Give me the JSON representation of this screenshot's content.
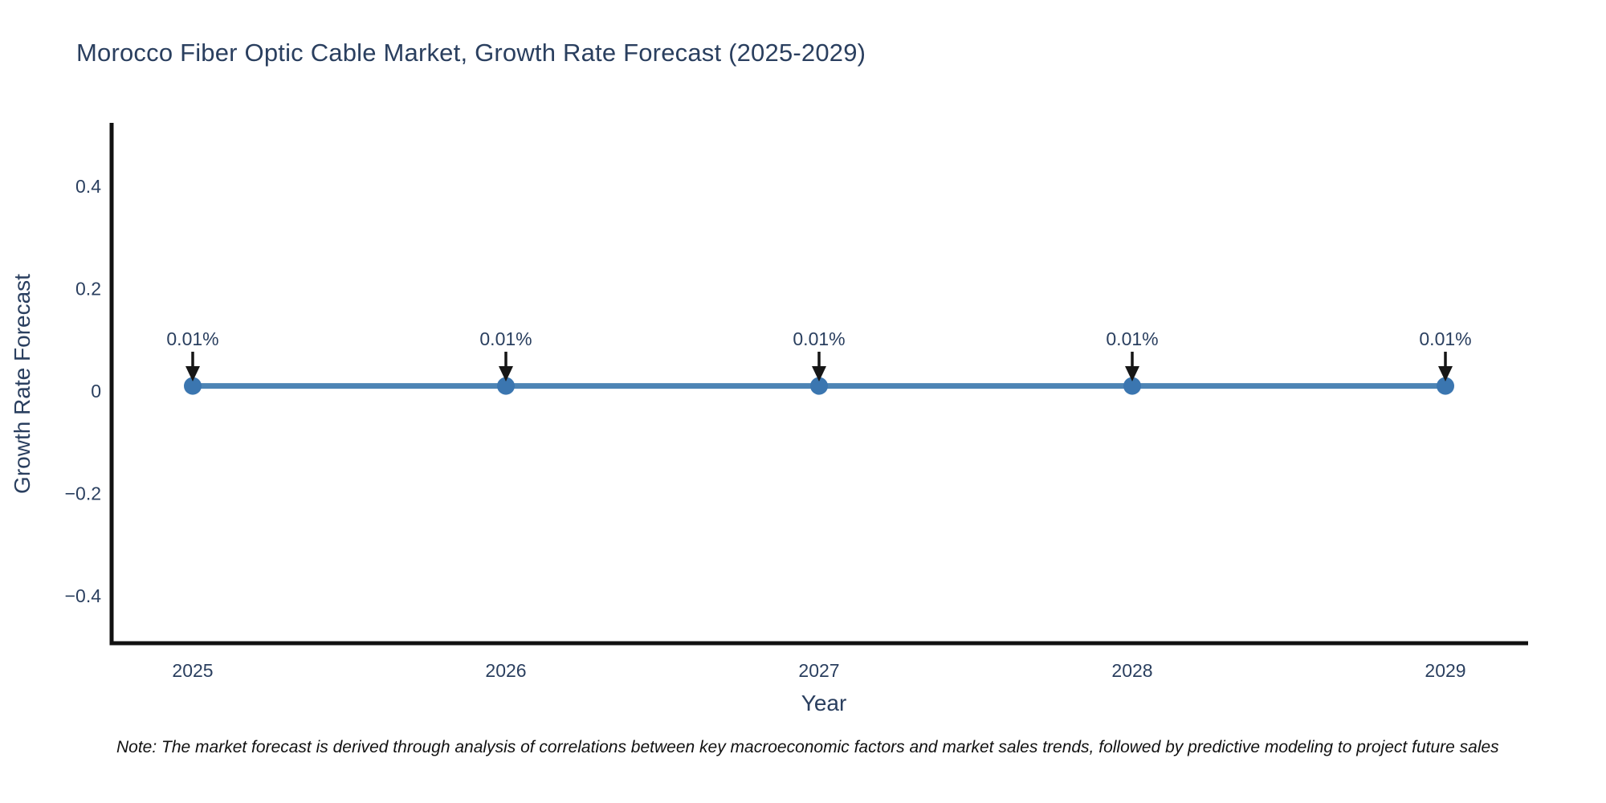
{
  "chart": {
    "title": "Morocco Fiber Optic Cable Market, Growth Rate Forecast (2025-2029)",
    "xlabel": "Year",
    "ylabel": "Growth Rate Forecast",
    "note": "Note: The market forecast is derived through analysis of correlations between key macroeconomic factors and market sales trends, followed by predictive modeling to project future sales"
  },
  "chart_data": {
    "type": "line",
    "title": "Morocco Fiber Optic Cable Market, Growth Rate Forecast (2025-2029)",
    "xlabel": "Year",
    "ylabel": "Growth Rate Forecast",
    "x": [
      2025,
      2026,
      2027,
      2028,
      2029
    ],
    "series": [
      {
        "name": "Growth Rate Forecast",
        "values": [
          0.01,
          0.01,
          0.01,
          0.01,
          0.01
        ]
      }
    ],
    "point_labels": [
      "0.01%",
      "0.01%",
      "0.01%",
      "0.01%",
      "0.01%"
    ],
    "yticks": [
      0.4,
      0.2,
      0,
      -0.2,
      -0.4
    ],
    "ylim": [
      -0.5,
      0.52
    ],
    "grid": false,
    "legend": false,
    "colors": {
      "line": "#4d84b5",
      "marker": "#3b76b0",
      "arrow": "#161616",
      "axis": "#111111",
      "tick_text": "#2a3f5f",
      "annotation_text": "#2a3f5f"
    }
  }
}
